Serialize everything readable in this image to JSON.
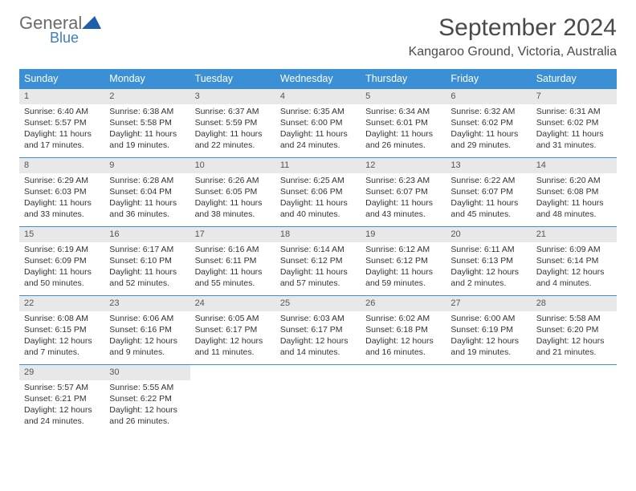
{
  "logo": {
    "word1": "General",
    "word2": "Blue"
  },
  "title": "September 2024",
  "location": "Kangaroo Ground, Victoria, Australia",
  "colors": {
    "header_bg": "#3b8fd4",
    "daynum_bg": "#e8e8e8",
    "rule": "#3b8fd4"
  },
  "weekdays": [
    "Sunday",
    "Monday",
    "Tuesday",
    "Wednesday",
    "Thursday",
    "Friday",
    "Saturday"
  ],
  "days": [
    {
      "n": "1",
      "sunrise": "6:40 AM",
      "sunset": "5:57 PM",
      "dl": "11 hours and 17 minutes."
    },
    {
      "n": "2",
      "sunrise": "6:38 AM",
      "sunset": "5:58 PM",
      "dl": "11 hours and 19 minutes."
    },
    {
      "n": "3",
      "sunrise": "6:37 AM",
      "sunset": "5:59 PM",
      "dl": "11 hours and 22 minutes."
    },
    {
      "n": "4",
      "sunrise": "6:35 AM",
      "sunset": "6:00 PM",
      "dl": "11 hours and 24 minutes."
    },
    {
      "n": "5",
      "sunrise": "6:34 AM",
      "sunset": "6:01 PM",
      "dl": "11 hours and 26 minutes."
    },
    {
      "n": "6",
      "sunrise": "6:32 AM",
      "sunset": "6:02 PM",
      "dl": "11 hours and 29 minutes."
    },
    {
      "n": "7",
      "sunrise": "6:31 AM",
      "sunset": "6:02 PM",
      "dl": "11 hours and 31 minutes."
    },
    {
      "n": "8",
      "sunrise": "6:29 AM",
      "sunset": "6:03 PM",
      "dl": "11 hours and 33 minutes."
    },
    {
      "n": "9",
      "sunrise": "6:28 AM",
      "sunset": "6:04 PM",
      "dl": "11 hours and 36 minutes."
    },
    {
      "n": "10",
      "sunrise": "6:26 AM",
      "sunset": "6:05 PM",
      "dl": "11 hours and 38 minutes."
    },
    {
      "n": "11",
      "sunrise": "6:25 AM",
      "sunset": "6:06 PM",
      "dl": "11 hours and 40 minutes."
    },
    {
      "n": "12",
      "sunrise": "6:23 AM",
      "sunset": "6:07 PM",
      "dl": "11 hours and 43 minutes."
    },
    {
      "n": "13",
      "sunrise": "6:22 AM",
      "sunset": "6:07 PM",
      "dl": "11 hours and 45 minutes."
    },
    {
      "n": "14",
      "sunrise": "6:20 AM",
      "sunset": "6:08 PM",
      "dl": "11 hours and 48 minutes."
    },
    {
      "n": "15",
      "sunrise": "6:19 AM",
      "sunset": "6:09 PM",
      "dl": "11 hours and 50 minutes."
    },
    {
      "n": "16",
      "sunrise": "6:17 AM",
      "sunset": "6:10 PM",
      "dl": "11 hours and 52 minutes."
    },
    {
      "n": "17",
      "sunrise": "6:16 AM",
      "sunset": "6:11 PM",
      "dl": "11 hours and 55 minutes."
    },
    {
      "n": "18",
      "sunrise": "6:14 AM",
      "sunset": "6:12 PM",
      "dl": "11 hours and 57 minutes."
    },
    {
      "n": "19",
      "sunrise": "6:12 AM",
      "sunset": "6:12 PM",
      "dl": "11 hours and 59 minutes."
    },
    {
      "n": "20",
      "sunrise": "6:11 AM",
      "sunset": "6:13 PM",
      "dl": "12 hours and 2 minutes."
    },
    {
      "n": "21",
      "sunrise": "6:09 AM",
      "sunset": "6:14 PM",
      "dl": "12 hours and 4 minutes."
    },
    {
      "n": "22",
      "sunrise": "6:08 AM",
      "sunset": "6:15 PM",
      "dl": "12 hours and 7 minutes."
    },
    {
      "n": "23",
      "sunrise": "6:06 AM",
      "sunset": "6:16 PM",
      "dl": "12 hours and 9 minutes."
    },
    {
      "n": "24",
      "sunrise": "6:05 AM",
      "sunset": "6:17 PM",
      "dl": "12 hours and 11 minutes."
    },
    {
      "n": "25",
      "sunrise": "6:03 AM",
      "sunset": "6:17 PM",
      "dl": "12 hours and 14 minutes."
    },
    {
      "n": "26",
      "sunrise": "6:02 AM",
      "sunset": "6:18 PM",
      "dl": "12 hours and 16 minutes."
    },
    {
      "n": "27",
      "sunrise": "6:00 AM",
      "sunset": "6:19 PM",
      "dl": "12 hours and 19 minutes."
    },
    {
      "n": "28",
      "sunrise": "5:58 AM",
      "sunset": "6:20 PM",
      "dl": "12 hours and 21 minutes."
    },
    {
      "n": "29",
      "sunrise": "5:57 AM",
      "sunset": "6:21 PM",
      "dl": "12 hours and 24 minutes."
    },
    {
      "n": "30",
      "sunrise": "5:55 AM",
      "sunset": "6:22 PM",
      "dl": "12 hours and 26 minutes."
    }
  ],
  "labels": {
    "sunrise": "Sunrise: ",
    "sunset": "Sunset: ",
    "daylight": "Daylight: "
  }
}
